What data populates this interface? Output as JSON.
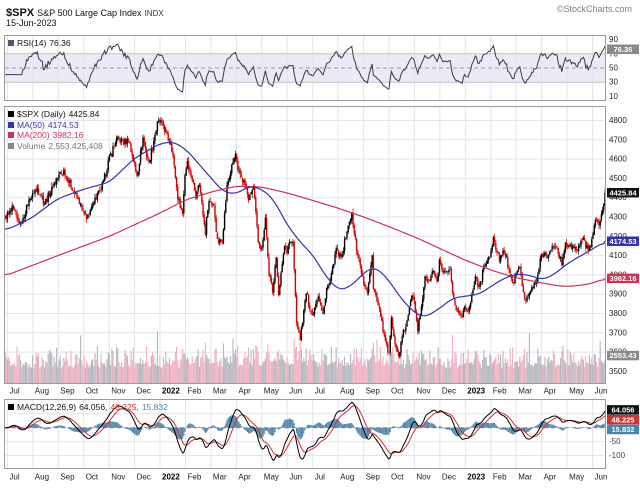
{
  "header": {
    "symbol": "$SPX",
    "name": "S&P 500 Large Cap Index",
    "exchange": "INDX",
    "date": "15-Jun-2023",
    "credit": "©StockCharts.com"
  },
  "legend": {
    "rsi_label": "RSI(14)",
    "rsi_value": "76.36",
    "price_series": "$SPX (Daily)",
    "price_value": "4425.84",
    "ma50_label": "MA(50)",
    "ma50_value": "4174.53",
    "ma200_label": "MA(200)",
    "ma200_value": "3982.16",
    "volume_label": "Volume",
    "volume_value": "2,553,425,408",
    "macd_label": "MACD(12,26,9)",
    "macd_v1": "64.056,",
    "macd_v2": "48.225,",
    "macd_v3": "15.832"
  },
  "axis_boxes": {
    "price": "4425.84",
    "ma50": "4174.53",
    "ma200": "3982.16",
    "volume": "2553.43",
    "rsi": "76.36",
    "macd": "64.056",
    "signal": "48.225",
    "hist": "15.832"
  },
  "colors": {
    "up": "#000000",
    "down": "#d40000",
    "ma50": "#3333aa",
    "ma200": "#cc3355",
    "volume_up": "#b5b5bd",
    "volume_down": "#efb0bf",
    "volume_text": "#777777",
    "rsi": "#3a3a4a",
    "macd": "#000000",
    "signal": "#cc3333",
    "hist": "#4e81a8",
    "box_gray_bg": "#8a8a8a",
    "grid": "#e4e4ea",
    "panel_border": "#9a9aa2",
    "band": "#edeaf5"
  },
  "x_axis": {
    "months": [
      "Jul",
      "Aug",
      "Sep",
      "Oct",
      "Nov",
      "Dec",
      "2022",
      "Feb",
      "Mar",
      "Apr",
      "May",
      "Jun",
      "Jul",
      "Aug",
      "Sep",
      "Oct",
      "Nov",
      "Dec",
      "2023",
      "Feb",
      "Mar",
      "Apr",
      "May",
      "Jun"
    ],
    "first_boundary_day": 2,
    "days_per_month": 21.2,
    "total_days": 501
  },
  "chart_data": [
    {
      "panel": "rsi",
      "type": "line",
      "title": "RSI(14)",
      "last": 76.36,
      "ylim": [
        0,
        100
      ],
      "ticks": [
        90,
        70,
        50,
        30,
        10
      ],
      "band": [
        30,
        70
      ],
      "midline": 50
    },
    {
      "panel": "price",
      "type": "candlestick",
      "title": "$SPX (Daily)",
      "last_close": 4425.84,
      "ma50_last": 4174.53,
      "ma200_last": 3982.16,
      "volume_last": 2553425408,
      "ylim": [
        3500,
        4800
      ],
      "y_ticks": [
        4800,
        4700,
        4600,
        4500,
        4400,
        4300,
        4200,
        4100,
        4000,
        3900,
        3800,
        3700,
        3600,
        3500
      ],
      "volume_spike_days": [
        63,
        127,
        190,
        246,
        310,
        373,
        437,
        496
      ],
      "close_anchors": [
        [
          0,
          4290
        ],
        [
          6,
          4345
        ],
        [
          13,
          4258
        ],
        [
          21,
          4400
        ],
        [
          27,
          4447
        ],
        [
          33,
          4373
        ],
        [
          44,
          4509
        ],
        [
          49,
          4537
        ],
        [
          57,
          4443
        ],
        [
          63,
          4358
        ],
        [
          66,
          4307
        ],
        [
          70,
          4300
        ],
        [
          74,
          4391
        ],
        [
          80,
          4438
        ],
        [
          87,
          4605
        ],
        [
          93,
          4697
        ],
        [
          99,
          4688
        ],
        [
          103,
          4705
        ],
        [
          108,
          4567
        ],
        [
          110,
          4513
        ],
        [
          115,
          4712
        ],
        [
          120,
          4568
        ],
        [
          127,
          4793
        ],
        [
          130,
          4797
        ],
        [
          139,
          4663
        ],
        [
          144,
          4398
        ],
        [
          148,
          4326
        ],
        [
          150,
          4516
        ],
        [
          152,
          4589
        ],
        [
          159,
          4419
        ],
        [
          162,
          4475
        ],
        [
          167,
          4225
        ],
        [
          168,
          4288
        ],
        [
          170,
          4374
        ],
        [
          174,
          4363
        ],
        [
          177,
          4171
        ],
        [
          181,
          4173
        ],
        [
          185,
          4463
        ],
        [
          192,
          4631
        ],
        [
          194,
          4530
        ],
        [
          196,
          4525
        ],
        [
          199,
          4488
        ],
        [
          203,
          4393
        ],
        [
          207,
          4459
        ],
        [
          211,
          4175
        ],
        [
          214,
          4131
        ],
        [
          217,
          4300
        ],
        [
          220,
          3991
        ],
        [
          223,
          3930
        ],
        [
          226,
          4088
        ],
        [
          228,
          3900
        ],
        [
          233,
          4158
        ],
        [
          235,
          4132
        ],
        [
          237,
          4176
        ],
        [
          240,
          4160
        ],
        [
          243,
          3749
        ],
        [
          246,
          3666
        ],
        [
          251,
          3911
        ],
        [
          256,
          3785
        ],
        [
          261,
          3899
        ],
        [
          265,
          3790
        ],
        [
          268,
          3936
        ],
        [
          271,
          3961
        ],
        [
          276,
          4130
        ],
        [
          280,
          4091
        ],
        [
          287,
          4280
        ],
        [
          289,
          4305
        ],
        [
          293,
          4138
        ],
        [
          296,
          4058
        ],
        [
          299,
          3955
        ],
        [
          302,
          3908
        ],
        [
          306,
          4110
        ],
        [
          307,
          3933
        ],
        [
          310,
          3873
        ],
        [
          313,
          3790
        ],
        [
          317,
          3647
        ],
        [
          320,
          3586
        ],
        [
          322,
          3791
        ],
        [
          325,
          3640
        ],
        [
          328,
          3577
        ],
        [
          331,
          3678
        ],
        [
          335,
          3753
        ],
        [
          339,
          3901
        ],
        [
          341,
          3872
        ],
        [
          344,
          3720
        ],
        [
          347,
          3828
        ],
        [
          350,
          3993
        ],
        [
          353,
          3959
        ],
        [
          357,
          4027
        ],
        [
          360,
          3958
        ],
        [
          362,
          4080
        ],
        [
          365,
          3999
        ],
        [
          371,
          4020
        ],
        [
          373,
          3896
        ],
        [
          376,
          3818
        ],
        [
          381,
          3783
        ],
        [
          383,
          3840
        ],
        [
          386,
          3808
        ],
        [
          389,
          3892
        ],
        [
          392,
          3999
        ],
        [
          395,
          3929
        ],
        [
          400,
          4060
        ],
        [
          403,
          4077
        ],
        [
          407,
          4180
        ],
        [
          412,
          4082
        ],
        [
          415,
          4136
        ],
        [
          418,
          4079
        ],
        [
          422,
          3970
        ],
        [
          424,
          3970
        ],
        [
          429,
          4048
        ],
        [
          433,
          3862
        ],
        [
          436,
          3891
        ],
        [
          438,
          3917
        ],
        [
          443,
          3971
        ],
        [
          447,
          4109
        ],
        [
          452,
          4105
        ],
        [
          457,
          4138
        ],
        [
          459,
          4155
        ],
        [
          464,
          4055
        ],
        [
          467,
          4169
        ],
        [
          473,
          4136
        ],
        [
          477,
          4131
        ],
        [
          482,
          4198
        ],
        [
          486,
          4115
        ],
        [
          489,
          4180
        ],
        [
          492,
          4282
        ],
        [
          495,
          4268
        ],
        [
          497,
          4299
        ],
        [
          499,
          4369
        ],
        [
          500,
          4425.84
        ]
      ],
      "ma50_anchors": [
        [
          0,
          4230
        ],
        [
          21,
          4290
        ],
        [
          44,
          4395
        ],
        [
          66,
          4445
        ],
        [
          87,
          4480
        ],
        [
          108,
          4605
        ],
        [
          129,
          4680
        ],
        [
          140,
          4690
        ],
        [
          151,
          4650
        ],
        [
          172,
          4500
        ],
        [
          182,
          4430
        ],
        [
          193,
          4420
        ],
        [
          203,
          4460
        ],
        [
          214,
          4445
        ],
        [
          224,
          4390
        ],
        [
          235,
          4260
        ],
        [
          246,
          4170
        ],
        [
          257,
          4100
        ],
        [
          267,
          3995
        ],
        [
          278,
          3920
        ],
        [
          288,
          3940
        ],
        [
          299,
          4010
        ],
        [
          306,
          4040
        ],
        [
          313,
          4020
        ],
        [
          320,
          3970
        ],
        [
          331,
          3870
        ],
        [
          342,
          3800
        ],
        [
          350,
          3780
        ],
        [
          363,
          3830
        ],
        [
          373,
          3880
        ],
        [
          384,
          3890
        ],
        [
          395,
          3900
        ],
        [
          405,
          3940
        ],
        [
          415,
          3980
        ],
        [
          426,
          4005
        ],
        [
          436,
          4000
        ],
        [
          448,
          3975
        ],
        [
          457,
          4000
        ],
        [
          469,
          4060
        ],
        [
          480,
          4100
        ],
        [
          490,
          4135
        ],
        [
          500,
          4174.53
        ]
      ],
      "ma200_anchors": [
        [
          0,
          3995
        ],
        [
          44,
          4100
        ],
        [
          87,
          4200
        ],
        [
          129,
          4320
        ],
        [
          151,
          4390
        ],
        [
          172,
          4430
        ],
        [
          193,
          4460
        ],
        [
          214,
          4455
        ],
        [
          235,
          4425
        ],
        [
          257,
          4385
        ],
        [
          278,
          4345
        ],
        [
          299,
          4300
        ],
        [
          320,
          4250
        ],
        [
          342,
          4195
        ],
        [
          363,
          4135
        ],
        [
          384,
          4075
        ],
        [
          405,
          4025
        ],
        [
          426,
          3985
        ],
        [
          448,
          3958
        ],
        [
          459,
          3945
        ],
        [
          469,
          3940
        ],
        [
          482,
          3948
        ],
        [
          490,
          3958
        ],
        [
          500,
          3982.16
        ]
      ]
    },
    {
      "panel": "macd",
      "type": "macd",
      "title": "MACD(12,26,9)",
      "macd_last": 64.056,
      "signal_last": 48.225,
      "hist_last": 15.832,
      "grid": [
        50,
        0,
        -50,
        -100
      ]
    }
  ]
}
